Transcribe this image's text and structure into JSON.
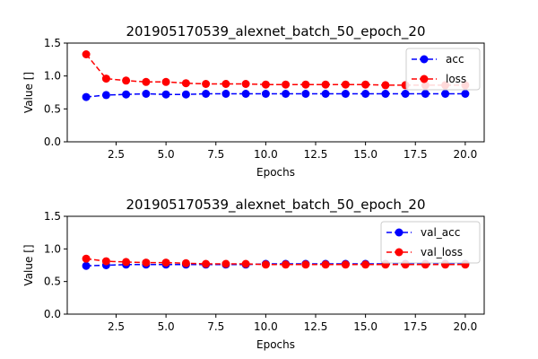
{
  "chart_data": [
    {
      "type": "line",
      "title": "201905170539_alexnet_batch_50_epoch_20",
      "xlabel": "Epochs",
      "ylabel": "Value []",
      "xlim": [
        0.05,
        20.95
      ],
      "ylim": [
        0.0,
        1.5
      ],
      "xticks": [
        "2.5",
        "5.0",
        "7.5",
        "10.0",
        "12.5",
        "15.0",
        "17.5",
        "20.0"
      ],
      "yticks": [
        "0.0",
        "0.5",
        "1.0",
        "1.5"
      ],
      "legend_position": "top-right",
      "grid": false,
      "x": [
        1,
        2,
        3,
        4,
        5,
        6,
        7,
        8,
        9,
        10,
        11,
        12,
        13,
        14,
        15,
        16,
        17,
        18,
        19,
        20
      ],
      "series": [
        {
          "name": "acc",
          "color": "#0000ff",
          "values": [
            0.68,
            0.71,
            0.72,
            0.73,
            0.72,
            0.72,
            0.73,
            0.73,
            0.73,
            0.73,
            0.73,
            0.73,
            0.73,
            0.73,
            0.73,
            0.73,
            0.73,
            0.73,
            0.73,
            0.73
          ]
        },
        {
          "name": "loss",
          "color": "#ff0000",
          "values": [
            1.33,
            0.96,
            0.93,
            0.91,
            0.91,
            0.89,
            0.88,
            0.88,
            0.88,
            0.87,
            0.87,
            0.87,
            0.87,
            0.87,
            0.87,
            0.86,
            0.86,
            0.86,
            0.86,
            0.86
          ]
        }
      ]
    },
    {
      "type": "line",
      "title": "201905170539_alexnet_batch_50_epoch_20",
      "xlabel": "Epochs",
      "ylabel": "Value []",
      "xlim": [
        0.05,
        20.95
      ],
      "ylim": [
        0.0,
        1.5
      ],
      "xticks": [
        "2.5",
        "5.0",
        "7.5",
        "10.0",
        "12.5",
        "15.0",
        "17.5",
        "20.0"
      ],
      "yticks": [
        "0.0",
        "0.5",
        "1.0",
        "1.5"
      ],
      "legend_position": "top-right",
      "grid": false,
      "x": [
        1,
        2,
        3,
        4,
        5,
        6,
        7,
        8,
        9,
        10,
        11,
        12,
        13,
        14,
        15,
        16,
        17,
        18,
        19,
        20
      ],
      "series": [
        {
          "name": "val_acc",
          "color": "#0000ff",
          "values": [
            0.74,
            0.75,
            0.76,
            0.76,
            0.76,
            0.76,
            0.76,
            0.76,
            0.76,
            0.77,
            0.77,
            0.77,
            0.77,
            0.77,
            0.77,
            0.77,
            0.77,
            0.77,
            0.77,
            0.77
          ]
        },
        {
          "name": "val_loss",
          "color": "#ff0000",
          "values": [
            0.85,
            0.81,
            0.8,
            0.79,
            0.79,
            0.78,
            0.77,
            0.77,
            0.77,
            0.76,
            0.76,
            0.76,
            0.76,
            0.76,
            0.76,
            0.76,
            0.76,
            0.76,
            0.76,
            0.76
          ]
        }
      ]
    }
  ]
}
